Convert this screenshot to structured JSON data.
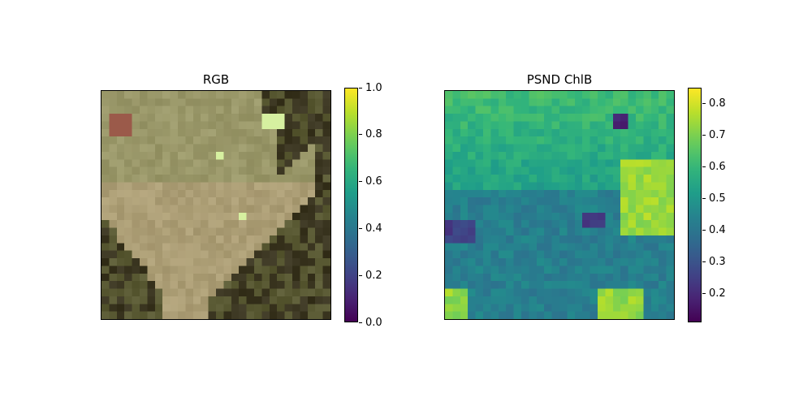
{
  "chart_data": [
    {
      "type": "heatmap",
      "title": "RGB",
      "colorbar": {
        "colormap": "viridis",
        "range": [
          0.0,
          1.0
        ],
        "ticks": [
          "0.0",
          "0.2",
          "0.4",
          "0.6",
          "0.8",
          "1.0"
        ]
      },
      "palette": {
        "bare_soil": "#b3a07a",
        "grass": "#8f9462",
        "dark_forest": "#3a3520",
        "mid_forest": "#5a5a34",
        "bright_patch": "#d6f0a0",
        "red_patch": "#9b5a4a"
      }
    },
    {
      "type": "heatmap",
      "title": "PSND ChlB",
      "colorbar": {
        "colormap": "viridis",
        "range": [
          0.11,
          0.85
        ],
        "ticks": [
          "0.2",
          "0.3",
          "0.4",
          "0.5",
          "0.6",
          "0.7",
          "0.8"
        ]
      }
    }
  ]
}
